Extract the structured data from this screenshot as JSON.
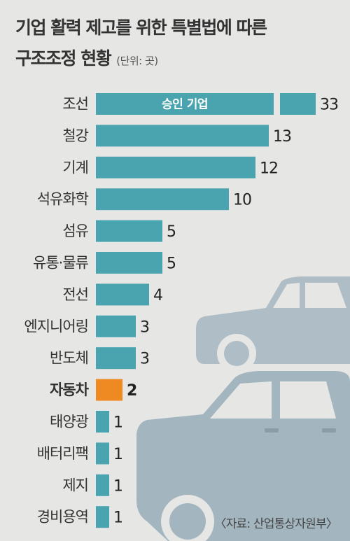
{
  "title": {
    "line1": "기업 활력 제고를 위한 특별법에 따른",
    "line2": "구조조정 현황",
    "unit": "(단위: 곳)"
  },
  "chart_data": {
    "type": "bar",
    "orientation": "horizontal",
    "categories": [
      "조선",
      "철강",
      "기계",
      "석유화학",
      "섬유",
      "유통·물류",
      "전선",
      "엔지니어링",
      "반도체",
      "자동차",
      "태양광",
      "배터리팩",
      "제지",
      "경비용역"
    ],
    "values": [
      33,
      13,
      12,
      10,
      5,
      5,
      4,
      3,
      3,
      2,
      1,
      1,
      1,
      1
    ],
    "highlight": "자동차",
    "bar_annotation": {
      "category": "조선",
      "text": "승인 기업"
    },
    "axis_break_category": "조선"
  },
  "colors": {
    "bar": "#4aa4b0",
    "highlight_bar": "#ef8a22",
    "background": "#e6e6e4",
    "car_front": "#a9bcc6",
    "car_back": "#aebdc6"
  },
  "source": "〈자료: 산업통상자원부〉"
}
